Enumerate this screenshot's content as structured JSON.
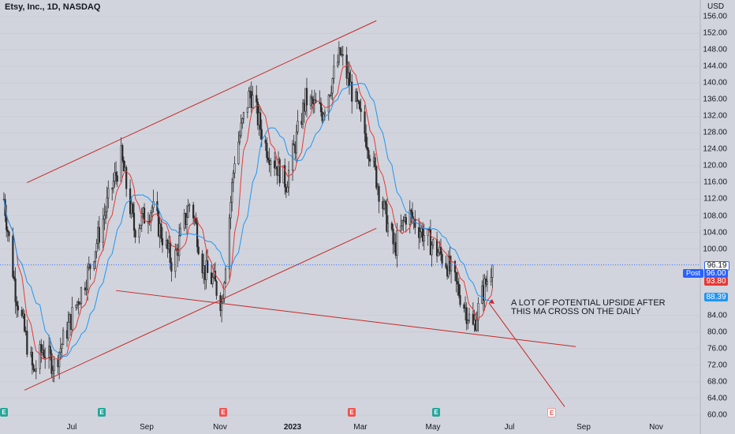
{
  "header": {
    "title": "Etsy, Inc., 1D, NASDAQ",
    "currency": "USD"
  },
  "colors": {
    "up": "#2b2b2b",
    "down": "#2b2b2b",
    "fast_ma": "#e53935",
    "slow_ma": "#2196f3",
    "trendline": "#c62828",
    "price_line": "#2962ff",
    "bg": "#d1d4dc"
  },
  "chart_data": {
    "type": "candlestick",
    "symbol": "Etsy, Inc., 1D, NASDAQ",
    "y_ticks": [
      "156.00",
      "152.00",
      "148.00",
      "144.00",
      "140.00",
      "136.00",
      "132.00",
      "128.00",
      "124.00",
      "120.00",
      "116.00",
      "112.00",
      "108.00",
      "104.00",
      "100.00",
      "96.00",
      "88.39",
      "84.00",
      "80.00",
      "76.00",
      "72.00",
      "68.00",
      "64.00",
      "60.00"
    ],
    "ylim": [
      60,
      156
    ],
    "x_ticks": [
      "Jul",
      "Sep",
      "Nov",
      "2023",
      "Mar",
      "May",
      "Jul",
      "Sep",
      "Nov"
    ],
    "series_close_keypoints": [
      {
        "x": "2022-05-23",
        "close": 112
      },
      {
        "x": "2022-06-01",
        "close": 90
      },
      {
        "x": "2022-06-15",
        "close": 70
      },
      {
        "x": "2022-06-22",
        "close": 76
      },
      {
        "x": "2022-07-01",
        "close": 72
      },
      {
        "x": "2022-07-15",
        "close": 84
      },
      {
        "x": "2022-07-28",
        "close": 95
      },
      {
        "x": "2022-08-15",
        "close": 115
      },
      {
        "x": "2022-08-22",
        "close": 122
      },
      {
        "x": "2022-09-01",
        "close": 105
      },
      {
        "x": "2022-09-15",
        "close": 110
      },
      {
        "x": "2022-10-01",
        "close": 96
      },
      {
        "x": "2022-10-15",
        "close": 112
      },
      {
        "x": "2022-10-25",
        "close": 95
      },
      {
        "x": "2022-11-02",
        "close": 92
      },
      {
        "x": "2022-11-08",
        "close": 87
      },
      {
        "x": "2022-11-18",
        "close": 122
      },
      {
        "x": "2022-11-30",
        "close": 138
      },
      {
        "x": "2022-12-12",
        "close": 125
      },
      {
        "x": "2022-12-28",
        "close": 116
      },
      {
        "x": "2023-01-12",
        "close": 136
      },
      {
        "x": "2023-01-25",
        "close": 133
      },
      {
        "x": "2023-02-08",
        "close": 147
      },
      {
        "x": "2023-02-15",
        "close": 140
      },
      {
        "x": "2023-03-01",
        "close": 126
      },
      {
        "x": "2023-03-15",
        "close": 108
      },
      {
        "x": "2023-03-22",
        "close": 100
      },
      {
        "x": "2023-04-01",
        "close": 109
      },
      {
        "x": "2023-04-15",
        "close": 103
      },
      {
        "x": "2023-05-01",
        "close": 97
      },
      {
        "x": "2023-05-12",
        "close": 89
      },
      {
        "x": "2023-05-22",
        "close": 81
      },
      {
        "x": "2023-05-30",
        "close": 90
      },
      {
        "x": "2023-06-06",
        "close": 96.19
      }
    ],
    "last_price": "96.19",
    "post_price": "96.00",
    "fast_ma_value": "93.80",
    "slow_ma_value": "88.39",
    "post_label": "Post",
    "annotation": [
      "A LOT OF POTENTIAL UPSIDE AFTER",
      "THIS MA CROSS ON THE DAILY"
    ],
    "moving_averages": [
      {
        "name": "fast",
        "color": "#e53935"
      },
      {
        "name": "slow",
        "color": "#2196f3"
      }
    ]
  },
  "events": [
    {
      "type": "earnings-past",
      "label": "E"
    },
    {
      "type": "earnings-past",
      "label": "E"
    },
    {
      "type": "earnings-red",
      "label": "E"
    },
    {
      "type": "earnings-red",
      "label": "E"
    },
    {
      "type": "earnings-past",
      "label": "E"
    },
    {
      "type": "earnings-future",
      "label": "E"
    }
  ]
}
